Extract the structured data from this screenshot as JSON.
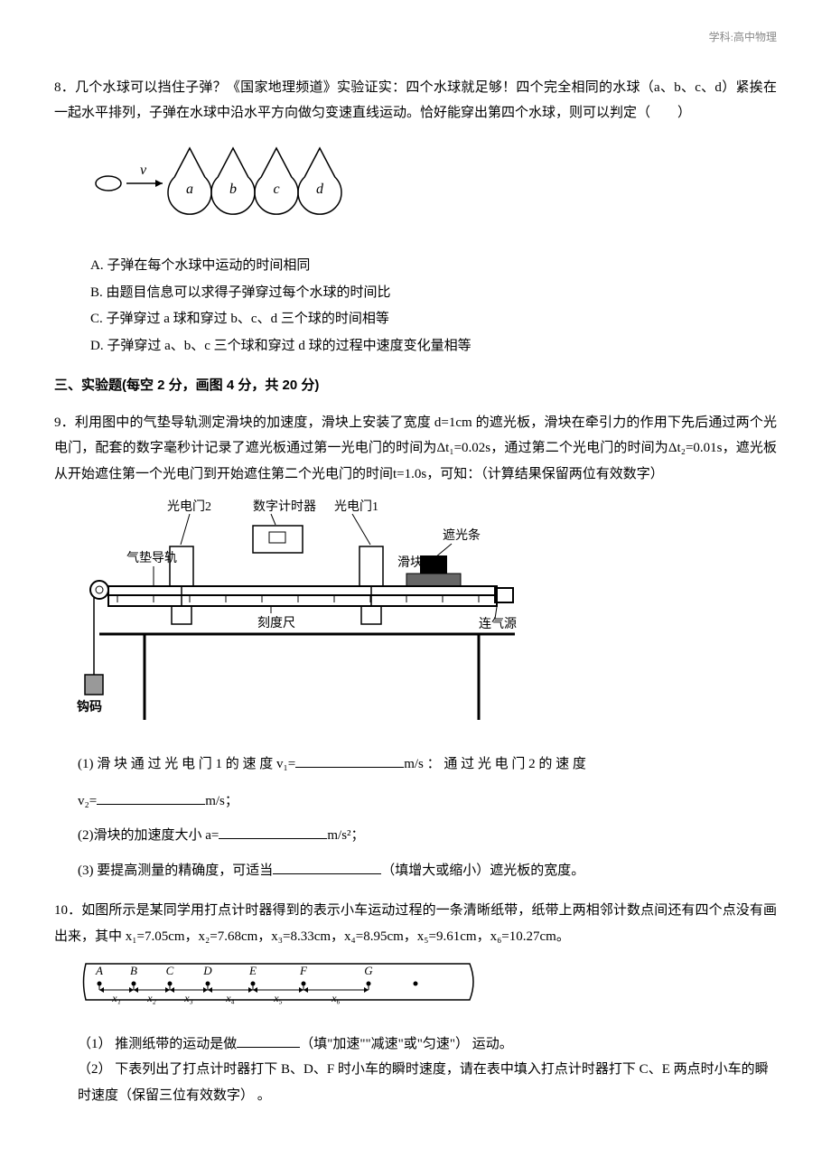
{
  "header": {
    "subject": "学科:高中物理"
  },
  "q8": {
    "number": "8．",
    "stem": "几个水球可以挡住子弹？《国家地理频道》实验证实：四个水球就足够！四个完全相同的水球（a、b、c、d）紧挨在一起水平排列，子弹在水球中沿水平方向做匀变速直线运动。恰好能穿出第四个水球，则可以判定（　　）",
    "figure": {
      "bullet_label": "v",
      "sphere_labels": [
        "a",
        "b",
        "c",
        "d"
      ],
      "stroke": "#000000",
      "bg": "#ffffff"
    },
    "choices": {
      "A": "A. 子弹在每个水球中运动的时间相同",
      "B": "B. 由题目信息可以求得子弹穿过每个水球的时间比",
      "C": "C. 子弹穿过 a 球和穿过 b、c、d 三个球的时间相等",
      "D": "D. 子弹穿过 a、b、c 三个球和穿过 d 球的过程中速度变化量相等"
    }
  },
  "section3": {
    "heading": "三、实验题(每空 2 分，画图 4 分，共 20 分)"
  },
  "q9": {
    "number": "9．",
    "stem": "利用图中的气垫导轨测定滑块的加速度，滑块上安装了宽度 d=1cm 的遮光板，滑块在牵引力的作用下先后通过两个光电门，配套的数字毫秒计记录了遮光板通过第一光电门的时间为Δt₁=0.02s，通过第二个光电门的时间为Δt₂=0.01s，遮光板从开始遮住第一个光电门到开始遮住第二个光电门的时间t=1.0s，可知：（计算结果保留两位有效数字）",
    "figure": {
      "labels": {
        "gate2": "光电门2",
        "timer": "数字计时器",
        "gate1": "光电门1",
        "rail": "气垫导轨",
        "slider": "滑块",
        "shade": "遮光条",
        "ruler": "刻度尺",
        "air": "连气源",
        "weight": "钩码"
      },
      "stroke": "#000000"
    },
    "sub1_a": "(1) 滑 块 通 过 光 电 门 1 的 速 度 v₁=",
    "sub1_b": "m/s ： 通 过 光 电 门 2 的 速 度",
    "sub1_c": "v₂=",
    "sub1_d": "m/s；",
    "sub2_a": "(2)滑块的加速度大小 a=",
    "sub2_b": "m/s²；",
    "sub3_a": "(3) 要提高测量的精确度，可适当",
    "sub3_b": "（填增大或缩小）遮光板的宽度。"
  },
  "q10": {
    "number": "10．",
    "stem": "如图所示是某同学用打点计时器得到的表示小车运动过程的一条清晰纸带，纸带上两相邻计数点间还有四个点没有画出来，其中 x₁=7.05cm，x₂=7.68cm，x₃=8.33cm，x₄=8.95cm，x₅=9.61cm，x₆=10.27cm。",
    "figure": {
      "point_labels": [
        "A",
        "B",
        "C",
        "D",
        "E",
        "F",
        "G"
      ],
      "seg_labels": [
        "x₁",
        "x₂",
        "x₃",
        "x₄",
        "x₅",
        "x₆"
      ],
      "positions": [
        20,
        58,
        98,
        140,
        190,
        246,
        318,
        370
      ],
      "stroke": "#000000"
    },
    "sub1_a": "（1） 推测纸带的运动是做",
    "sub1_b": "（填\"加速\"\"减速\"或\"匀速\"） 运动。",
    "sub2": "（2） 下表列出了打点计时器打下 B、D、F 时小车的瞬时速度，请在表中填入打点计时器打下 C、E 两点时小车的瞬时速度（保留三位有效数字） 。"
  }
}
